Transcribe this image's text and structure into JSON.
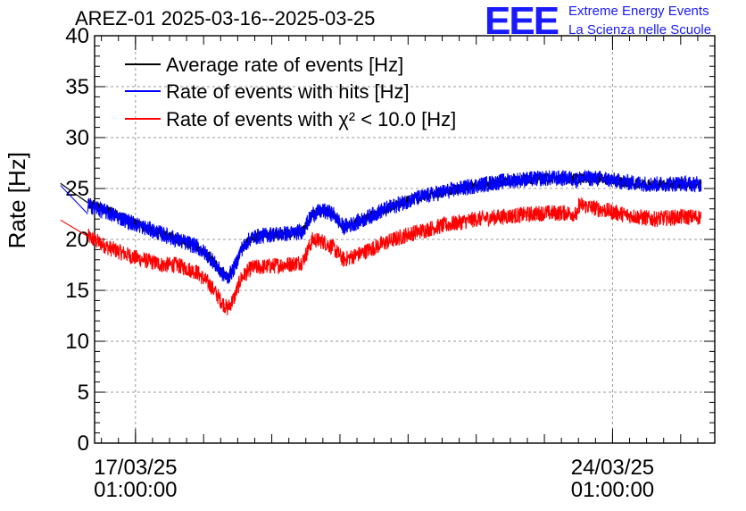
{
  "header": {
    "title": "AREZ-01 2025-03-16--2025-03-25",
    "logo_text": "EEE",
    "logo_line1": "Extreme Energy Events",
    "logo_line2": "La Scienza nelle Scuole",
    "logo_color": "#1a1aff"
  },
  "chart_data": {
    "type": "line",
    "title": "AREZ-01 2025-03-16--2025-03-25",
    "xlabel": "",
    "ylabel": "Rate [Hz]",
    "ylim": [
      0,
      40
    ],
    "xlim": [
      -0.6,
      8.5
    ],
    "x_units": "days since 17/03/25 01:00:00",
    "yticks": [
      0,
      5,
      10,
      15,
      20,
      25,
      30,
      35,
      40
    ],
    "xticks": [
      {
        "x": 0,
        "label_date": "17/03/25",
        "label_time": "01:00:00"
      },
      {
        "x": 7,
        "label_date": "24/03/25",
        "label_time": "01:00:00"
      }
    ],
    "grid": true,
    "legend_position": "top-left",
    "series": [
      {
        "name": "Average rate of events [Hz]",
        "color": "#000000",
        "noise": 0.5,
        "segments": [
          [
            [
              -1.1,
              25.5
            ],
            [
              -0.7,
              23.6
            ]
          ],
          [
            [
              -0.7,
              23.6
            ],
            [
              -0.4,
              22.8
            ],
            [
              0.0,
              21.5
            ],
            [
              0.4,
              20.5
            ],
            [
              0.6,
              20.0
            ],
            [
              0.9,
              19.3
            ],
            [
              1.1,
              18.2
            ],
            [
              1.25,
              16.8
            ],
            [
              1.35,
              16.2
            ],
            [
              1.45,
              17.2
            ],
            [
              1.55,
              19.0
            ],
            [
              1.7,
              20.2
            ],
            [
              2.0,
              20.5
            ],
            [
              2.3,
              20.6
            ],
            [
              2.45,
              20.8
            ],
            [
              2.6,
              22.5
            ],
            [
              2.75,
              22.8
            ],
            [
              2.9,
              22.5
            ],
            [
              3.05,
              21.2
            ],
            [
              3.3,
              21.8
            ],
            [
              3.6,
              22.8
            ],
            [
              4.0,
              23.8
            ],
            [
              4.4,
              24.5
            ],
            [
              5.0,
              25.3
            ],
            [
              5.5,
              25.8
            ],
            [
              6.0,
              26.0
            ],
            [
              6.4,
              26.0
            ],
            [
              6.5,
              26.0
            ]
          ],
          [
            [
              6.5,
              26.0
            ],
            [
              6.8,
              26.0
            ],
            [
              7.2,
              25.6
            ],
            [
              7.6,
              25.4
            ],
            [
              8.0,
              25.5
            ],
            [
              8.3,
              25.4
            ]
          ]
        ]
      },
      {
        "name": "Rate of events with hits [Hz]",
        "color": "#0000ff",
        "noise": 0.8,
        "segments": [
          [
            [
              -1.1,
              25.3
            ],
            [
              -0.7,
              22.5
            ]
          ],
          [
            [
              -0.7,
              23.4
            ],
            [
              -0.4,
              22.6
            ],
            [
              0.0,
              21.5
            ],
            [
              0.4,
              20.5
            ],
            [
              0.6,
              20.0
            ],
            [
              0.9,
              19.3
            ],
            [
              1.1,
              18.2
            ],
            [
              1.25,
              16.8
            ],
            [
              1.35,
              16.2
            ],
            [
              1.45,
              17.2
            ],
            [
              1.55,
              19.0
            ],
            [
              1.7,
              20.2
            ],
            [
              2.0,
              20.5
            ],
            [
              2.3,
              20.6
            ],
            [
              2.45,
              20.8
            ],
            [
              2.6,
              22.5
            ],
            [
              2.75,
              22.8
            ],
            [
              2.9,
              22.5
            ],
            [
              3.05,
              21.2
            ],
            [
              3.3,
              21.8
            ],
            [
              3.6,
              22.8
            ],
            [
              4.0,
              23.8
            ],
            [
              4.4,
              24.5
            ],
            [
              5.0,
              25.3
            ],
            [
              5.5,
              25.8
            ],
            [
              6.0,
              26.0
            ],
            [
              6.4,
              26.0
            ],
            [
              6.5,
              25.8
            ]
          ],
          [
            [
              6.5,
              26.0
            ],
            [
              6.8,
              26.0
            ],
            [
              7.2,
              25.6
            ],
            [
              7.6,
              25.4
            ],
            [
              8.0,
              25.5
            ],
            [
              8.3,
              25.4
            ]
          ]
        ]
      },
      {
        "name": "Rate of events with χ² < 10.0 [Hz]",
        "color": "#ff0000",
        "noise": 0.8,
        "segments": [
          [
            [
              -1.1,
              21.9
            ],
            [
              -0.7,
              20.3
            ]
          ],
          [
            [
              -0.7,
              20.3
            ],
            [
              -0.4,
              19.2
            ],
            [
              0.0,
              18.2
            ],
            [
              0.4,
              17.5
            ],
            [
              0.6,
              17.5
            ],
            [
              0.9,
              16.8
            ],
            [
              1.1,
              15.5
            ],
            [
              1.25,
              14.0
            ],
            [
              1.35,
              13.2
            ],
            [
              1.45,
              14.3
            ],
            [
              1.55,
              16.2
            ],
            [
              1.7,
              17.2
            ],
            [
              2.0,
              17.4
            ],
            [
              2.3,
              17.6
            ],
            [
              2.45,
              17.8
            ],
            [
              2.6,
              20.0
            ],
            [
              2.75,
              19.8
            ],
            [
              2.9,
              19.2
            ],
            [
              3.05,
              18.0
            ],
            [
              3.3,
              18.6
            ],
            [
              3.6,
              19.5
            ],
            [
              4.0,
              20.5
            ],
            [
              4.4,
              21.2
            ],
            [
              5.0,
              22.0
            ],
            [
              5.5,
              22.3
            ],
            [
              6.0,
              22.6
            ],
            [
              6.4,
              22.6
            ],
            [
              6.5,
              22.3
            ]
          ],
          [
            [
              6.5,
              23.4
            ],
            [
              6.8,
              23.0
            ],
            [
              7.2,
              22.4
            ],
            [
              7.6,
              22.0
            ],
            [
              8.0,
              22.2
            ],
            [
              8.3,
              22.2
            ]
          ]
        ]
      }
    ]
  }
}
